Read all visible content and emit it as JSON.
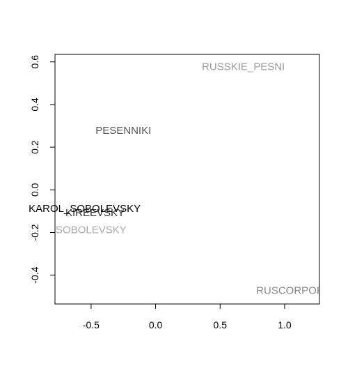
{
  "chart_data": {
    "type": "scatter",
    "title": "",
    "xlabel": "",
    "ylabel": "",
    "xlim": [
      -0.78,
      1.27
    ],
    "ylim": [
      -0.535,
      0.635
    ],
    "x_ticks": [
      {
        "value": -0.5,
        "label": "-0.5"
      },
      {
        "value": 0.0,
        "label": "0.0"
      },
      {
        "value": 0.5,
        "label": "0.5"
      },
      {
        "value": 1.0,
        "label": "1.0"
      }
    ],
    "y_ticks": [
      {
        "value": -0.4,
        "label": "-0.4"
      },
      {
        "value": -0.2,
        "label": "-0.2"
      },
      {
        "value": 0.0,
        "label": "0.0"
      },
      {
        "value": 0.2,
        "label": "0.2"
      },
      {
        "value": 0.4,
        "label": "0.4"
      },
      {
        "value": 0.6,
        "label": "0.6"
      }
    ],
    "grid": false,
    "points": [
      {
        "label": "RUSSKIE_PESNI",
        "x": 0.68,
        "y": 0.575,
        "color": "#999999"
      },
      {
        "label": "PESENNIKI",
        "x": -0.25,
        "y": 0.275,
        "color": "#555555"
      },
      {
        "label": "KIREEVSKY",
        "x": -0.47,
        "y": -0.11,
        "color": "#333333"
      },
      {
        "label": "KAROL_SOBOLEVSKY",
        "x": -0.55,
        "y": -0.09,
        "color": "#000000"
      },
      {
        "label": "SOBOLEVSKY",
        "x": -0.5,
        "y": -0.19,
        "color": "#aaaaaa"
      },
      {
        "label": "RUSCORPORA",
        "x": 1.07,
        "y": -0.475,
        "color": "#888888"
      }
    ]
  }
}
